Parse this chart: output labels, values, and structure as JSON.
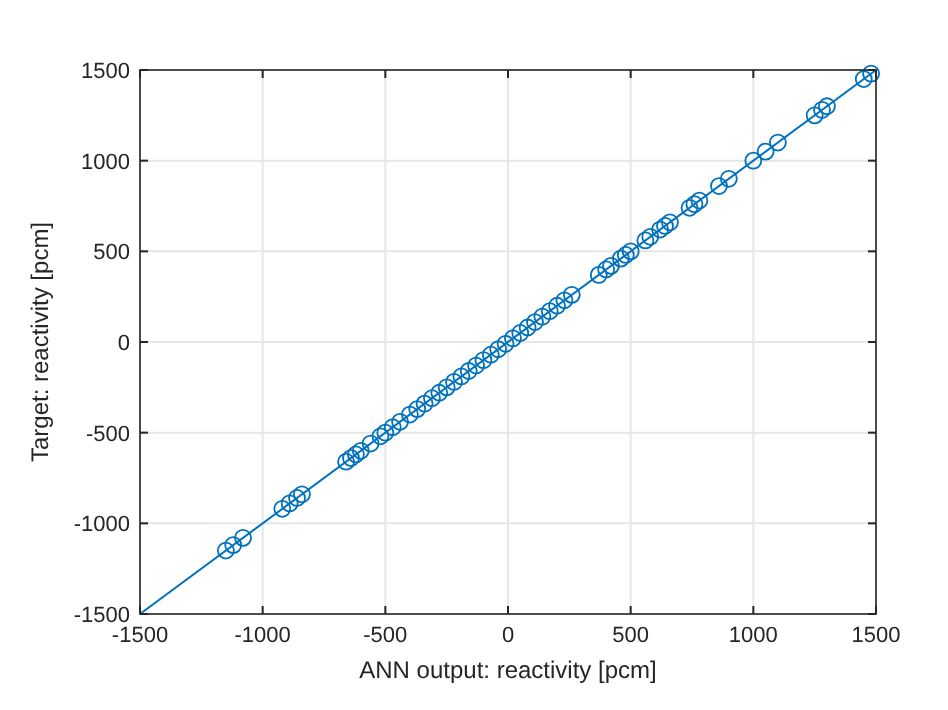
{
  "chart_data": {
    "type": "scatter",
    "xlabel": "ANN output: reactivity [pcm]",
    "ylabel": "Target: reactivity [pcm]",
    "xlim": [
      -1500,
      1500
    ],
    "ylim": [
      -1500,
      1500
    ],
    "xticks": [
      -1500,
      -1000,
      -500,
      0,
      500,
      1000,
      1500
    ],
    "yticks": [
      -1500,
      -1000,
      -500,
      0,
      500,
      1000,
      1500
    ],
    "grid": true,
    "marker": "circle",
    "series": [
      {
        "color": "#0072bd",
        "x": [
          -1150,
          -1120,
          -1080,
          -920,
          -890,
          -860,
          -840,
          -660,
          -640,
          -620,
          -600,
          -560,
          -520,
          -500,
          -470,
          -440,
          -400,
          -370,
          -340,
          -310,
          -280,
          -250,
          -220,
          -190,
          -160,
          -130,
          -100,
          -70,
          -40,
          -10,
          20,
          50,
          80,
          110,
          140,
          170,
          200,
          230,
          260,
          370,
          400,
          420,
          460,
          480,
          500,
          560,
          580,
          620,
          640,
          660,
          740,
          760,
          780,
          860,
          900,
          1000,
          1050,
          1100,
          1250,
          1280,
          1300,
          1450,
          1480
        ],
        "values": [
          -1150,
          -1120,
          -1080,
          -920,
          -890,
          -860,
          -840,
          -660,
          -640,
          -620,
          -600,
          -560,
          -520,
          -500,
          -470,
          -440,
          -400,
          -370,
          -340,
          -310,
          -280,
          -250,
          -220,
          -190,
          -160,
          -130,
          -100,
          -70,
          -40,
          -10,
          20,
          50,
          80,
          110,
          140,
          170,
          200,
          230,
          260,
          370,
          400,
          420,
          460,
          480,
          500,
          560,
          580,
          620,
          640,
          660,
          740,
          760,
          780,
          860,
          900,
          1000,
          1050,
          1100,
          1250,
          1280,
          1300,
          1450,
          1480
        ]
      },
      {
        "type": "line",
        "color": "#0072bd",
        "marker": "none",
        "x": [
          -1500,
          1500
        ],
        "values": [
          -1500,
          1500
        ]
      }
    ]
  }
}
